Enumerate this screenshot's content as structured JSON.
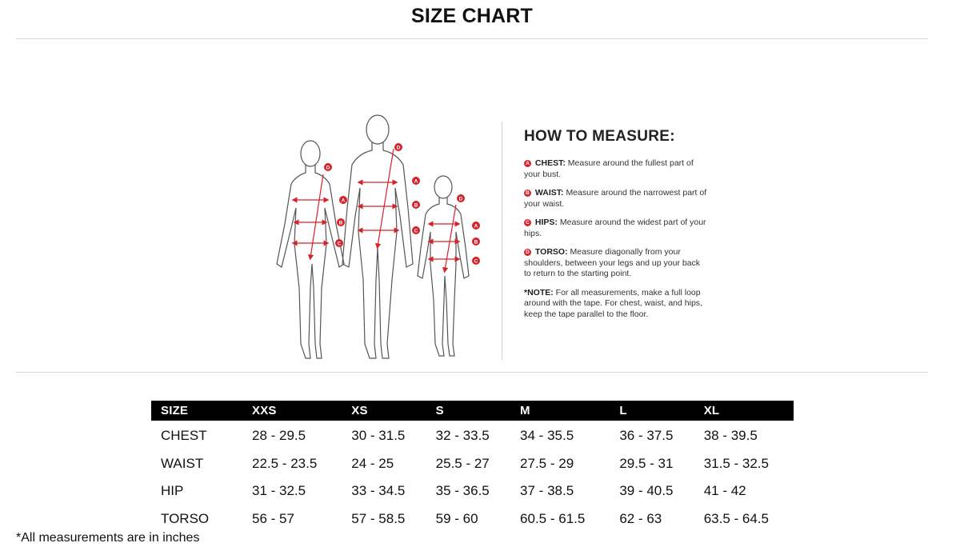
{
  "page": {
    "title": "SIZE CHART"
  },
  "howto": {
    "title": "HOW TO MEASURE:",
    "items": [
      {
        "key": "A",
        "term": "CHEST:",
        "text": "Measure around the fullest part of your bust."
      },
      {
        "key": "B",
        "term": "WAIST:",
        "text": "Measure around the narrowest part of your waist."
      },
      {
        "key": "C",
        "term": "HIPS:",
        "text": "Measure around the widest part of your hips."
      },
      {
        "key": "D",
        "term": "TORSO:",
        "text": "Measure diagonally from your shoulders, between your legs and up your back to return to the starting point."
      }
    ],
    "note_term": "*NOTE:",
    "note_text": "For all measurements, make a full loop around with the tape. For chest, waist, and hips, keep the tape parallel to the floor."
  },
  "figure_labels": {
    "a": "A",
    "b": "B",
    "c": "C",
    "d": "D"
  },
  "colors": {
    "accent": "#d6232a",
    "header_bg": "#000000"
  },
  "table": {
    "headers": [
      "SIZE",
      "XXS",
      "XS",
      "S",
      "M",
      "L",
      "XL"
    ],
    "rows": [
      [
        "CHEST",
        "28 - 29.5",
        "30 - 31.5",
        "32 - 33.5",
        "34 - 35.5",
        "36 - 37.5",
        "38 - 39.5"
      ],
      [
        "WAIST",
        "22.5 - 23.5",
        "24 - 25",
        "25.5 - 27",
        "27.5 - 29",
        "29.5 - 31",
        "31.5 - 32.5"
      ],
      [
        "HIP",
        "31 - 32.5",
        "33 - 34.5",
        "35 - 36.5",
        "37 - 38.5",
        "39 - 40.5",
        "41 - 42"
      ],
      [
        "TORSO",
        "56 - 57",
        "57 - 58.5",
        "59 - 60",
        "60.5 - 61.5",
        "62 - 63",
        "63.5 - 64.5"
      ]
    ]
  },
  "footnote": "*All measurements are in inches"
}
